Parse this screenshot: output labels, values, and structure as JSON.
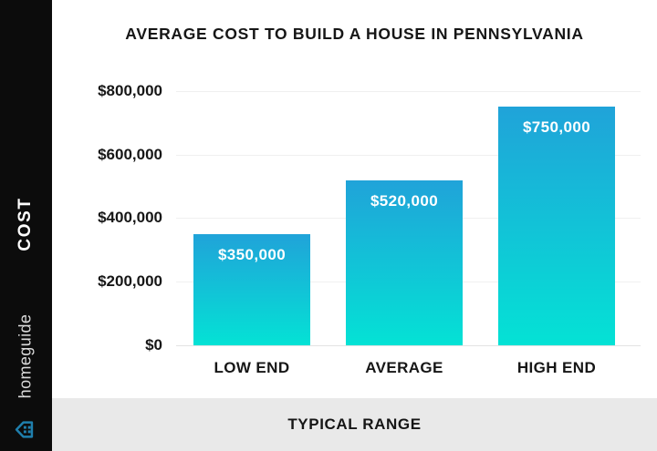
{
  "header": {
    "title": "AVERAGE COST TO BUILD A HOUSE IN PENNSYLVANIA"
  },
  "sidebar": {
    "cost_label": "COST",
    "brand": "homeguide",
    "icon": "homeguide-house-icon"
  },
  "footer": {
    "label": "TYPICAL RANGE"
  },
  "colors": {
    "bar_gradient_top": "#20a3d9",
    "bar_gradient_bottom": "#04e2d5",
    "sidebar_bg": "#0c0c0c",
    "footer_bg": "#e9e9e9",
    "brand_icon": "#1f7fad",
    "text": "#161616"
  },
  "chart_data": {
    "type": "bar",
    "title": "AVERAGE COST TO BUILD A HOUSE IN PENNSYLVANIA",
    "categories": [
      "LOW END",
      "AVERAGE",
      "HIGH END"
    ],
    "values": [
      350000,
      520000,
      750000
    ],
    "value_labels": [
      "$350,000",
      "$520,000",
      "$750,000"
    ],
    "xlabel": "TYPICAL RANGE",
    "ylabel": "COST",
    "ylim": [
      0,
      800000
    ],
    "yticks": [
      0,
      200000,
      400000,
      600000,
      800000
    ],
    "ytick_labels": [
      "$0",
      "$200,000",
      "$400,000",
      "$600,000",
      "$800,000"
    ],
    "grid": true,
    "legend": false,
    "bar_gradient": [
      "#20a3d9",
      "#04e2d5"
    ]
  }
}
